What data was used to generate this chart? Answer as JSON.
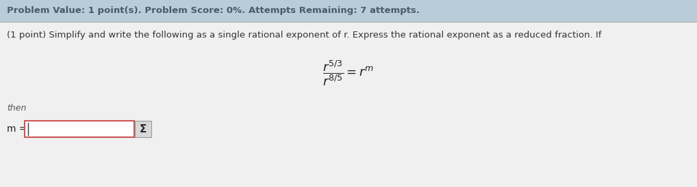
{
  "overall_bg": "#c8c8c8",
  "white_bg": "#f0f0f0",
  "header_bg": "#b8cdd8",
  "header_text": "Problem Value: 1 point(s). Problem Score: 0%. Attempts Remaining: 7 attempts.",
  "header_fontsize": 9.5,
  "header_text_color": "#4a5a6a",
  "body_text": "(1 point) Simplify and write the following as a single rational exponent of r. Express the rational exponent as a reduced fraction. If",
  "body_fontsize": 9.5,
  "body_text_color": "#333333",
  "then_text": "then",
  "then_fontsize": 9,
  "then_color": "#555555",
  "m_label": "m =",
  "m_fontsize": 10,
  "input_box_color": "#ffffff",
  "input_border_color": "#cc5555",
  "sigma_symbol": "Σ",
  "sigma_fontsize": 11,
  "formula_fontsize": 13,
  "formula_color": "#222222",
  "separator_color": "#aaaaaa"
}
